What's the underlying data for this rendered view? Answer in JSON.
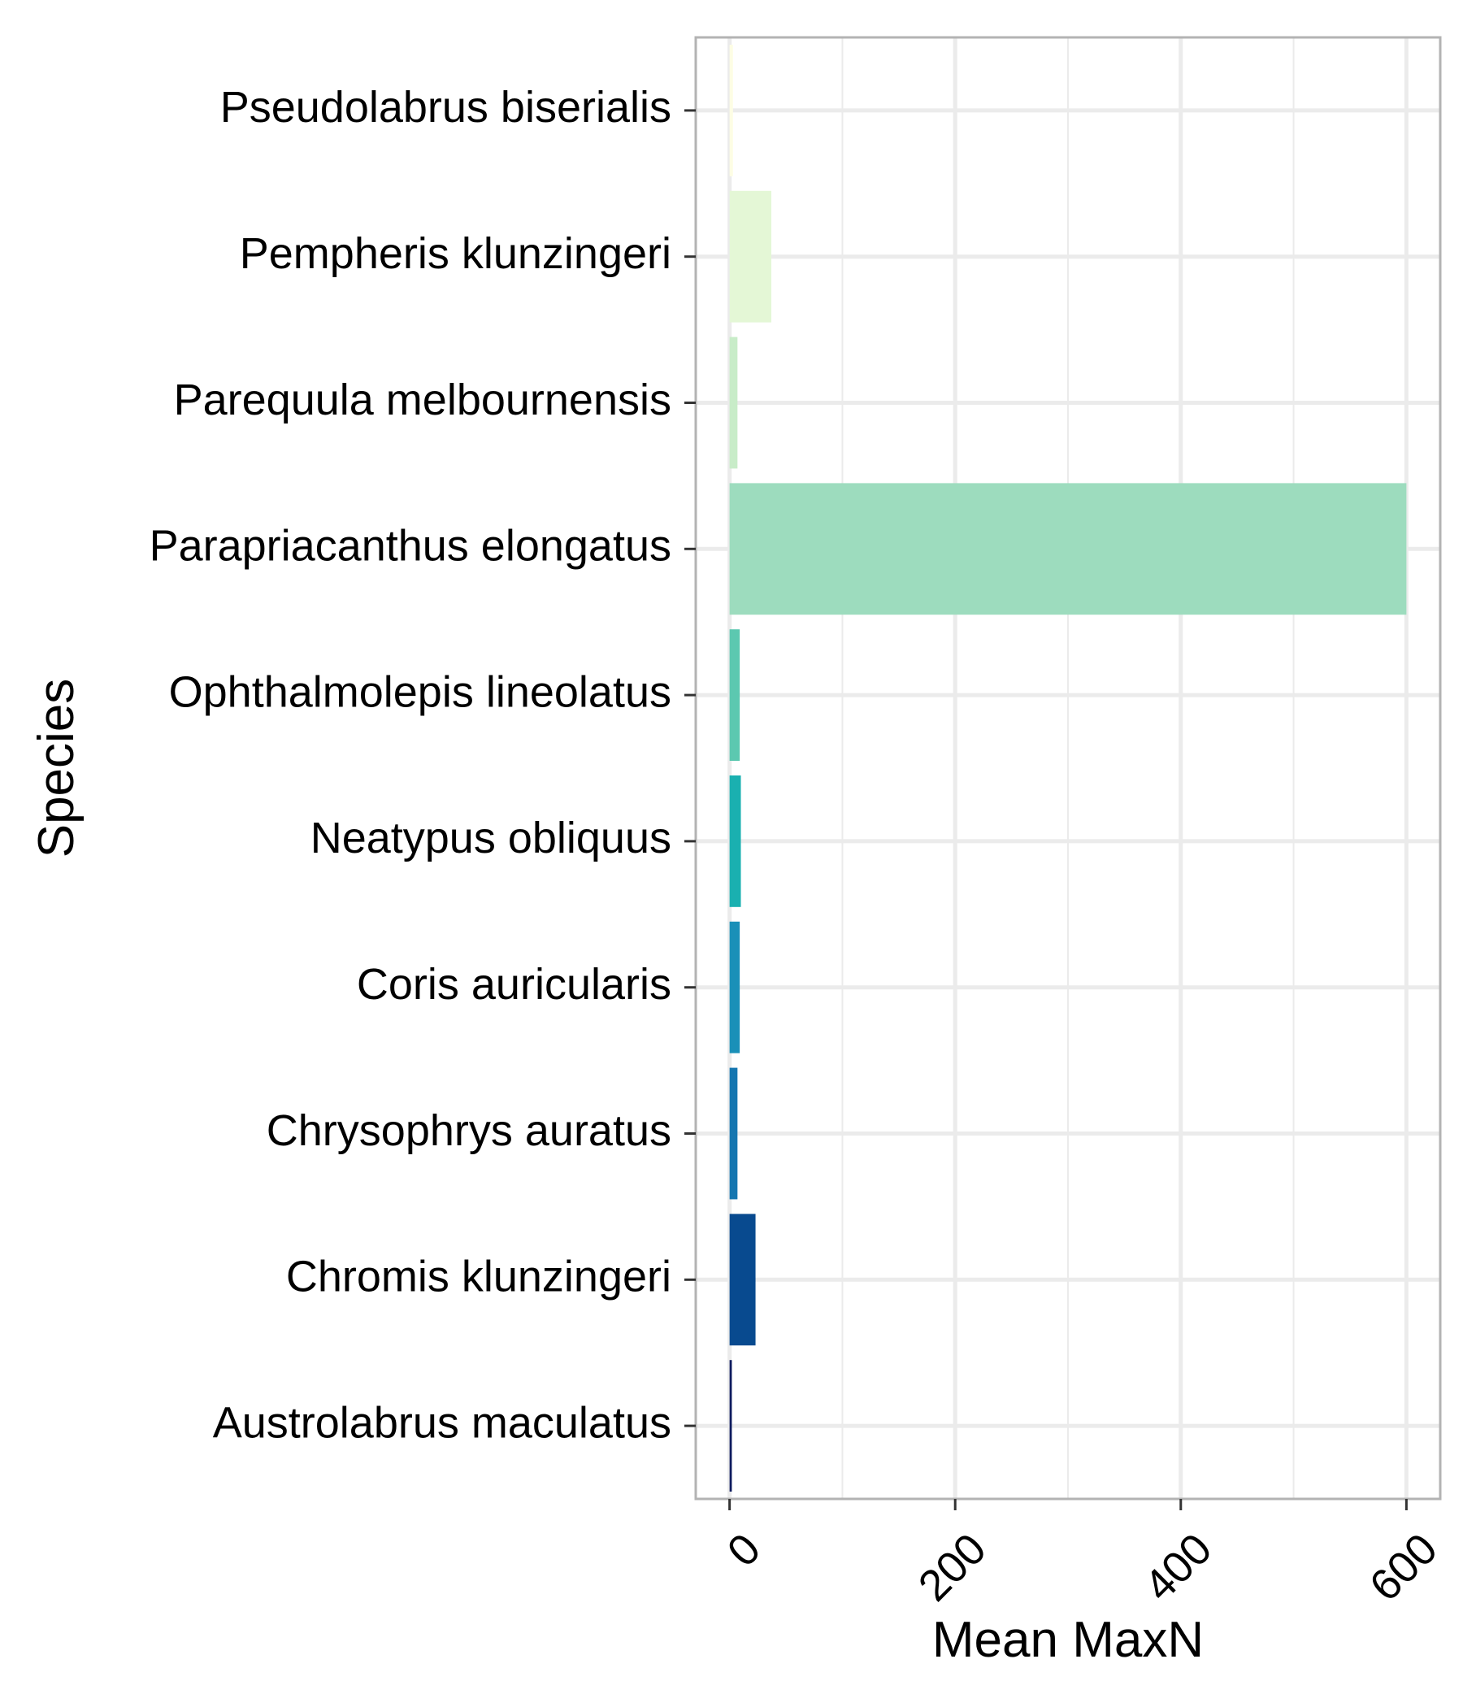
{
  "chart_data": {
    "type": "bar",
    "orientation": "horizontal",
    "categories": [
      "Austrolabrus maculatus",
      "Chromis klunzingeri",
      "Chrysophrys auratus",
      "Coris auricularis",
      "Neatypus obliquus",
      "Ophthalmolepis lineolatus",
      "Parapriacanthus elongatus",
      "Parequula melbournensis",
      "Pempheris klunzingeri",
      "Pseudolabrus biserialis"
    ],
    "values": [
      2,
      23,
      7,
      9,
      10,
      9,
      600,
      7,
      37,
      3
    ],
    "colors": [
      "#0c1a5e",
      "#084a8f",
      "#1576b0",
      "#1a90b8",
      "#1ab0b0",
      "#5cc8b0",
      "#9ddcbe",
      "#c8ecc8",
      "#e4f7d6",
      "#fdfde4"
    ],
    "xlabel": "Mean MaxN",
    "ylabel": "Species",
    "xticks": [
      0,
      200,
      400,
      600
    ],
    "xlim": [
      -30,
      630
    ],
    "grid": true,
    "legend": "none"
  }
}
